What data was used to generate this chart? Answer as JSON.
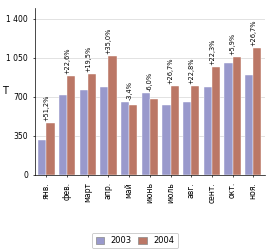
{
  "months": [
    "янв.",
    "фев.",
    "март",
    "апр.",
    "май",
    "июнь",
    "июль",
    "авг.",
    "сент.",
    "окт.",
    "ноя."
  ],
  "values_2003": [
    310,
    720,
    760,
    790,
    650,
    730,
    630,
    650,
    790,
    1000,
    900
  ],
  "values_2004": [
    470,
    885,
    905,
    1070,
    630,
    685,
    800,
    800,
    970,
    1060,
    1140
  ],
  "labels": [
    "+51,2%",
    "+22,6%",
    "+19,5%",
    "+35,0%",
    "-3,4%",
    "-6,0%",
    "+26,7%",
    "+22,8%",
    "+22,3%",
    "+5,9%",
    "+26,7%"
  ],
  "color_2003": "#9999cc",
  "color_2004": "#bb7766",
  "ylabel": "Т",
  "ytick_vals": [
    0,
    350,
    700,
    1050,
    1400
  ],
  "ytick_labels": [
    "0",
    "350",
    "700",
    "1 050",
    "1 400"
  ],
  "legend_2003": "2003",
  "legend_2004": "2004",
  "label_fontsize": 4.8,
  "tick_fontsize": 5.5,
  "bar_width": 0.4
}
